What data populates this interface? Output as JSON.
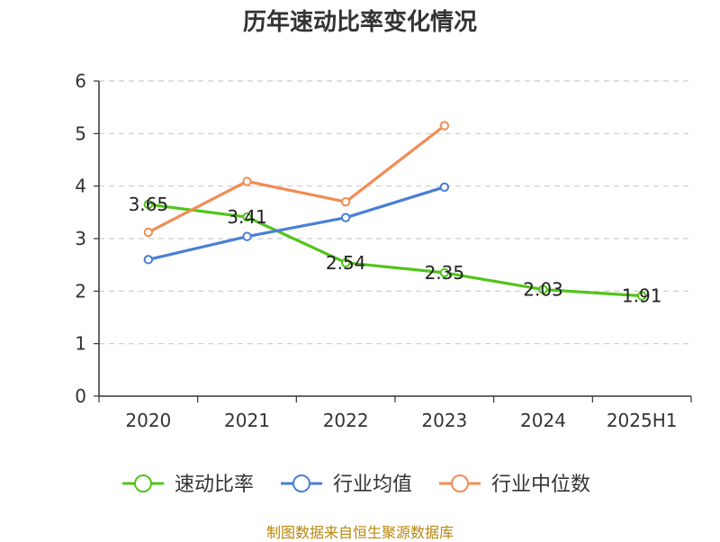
{
  "chart_data": {
    "type": "line",
    "title": "历年速动比率变化情况",
    "categories": [
      "2020",
      "2021",
      "2022",
      "2023",
      "2024",
      "2025H1"
    ],
    "ylim": [
      0,
      6
    ],
    "yticks": [
      0,
      1,
      2,
      3,
      4,
      5,
      6
    ],
    "grid": true,
    "legend_position": "bottom",
    "series": [
      {
        "name": "速动比率",
        "color": "#52c41a",
        "values": [
          3.65,
          3.41,
          2.54,
          2.35,
          2.03,
          1.91
        ],
        "labels": [
          "3.65",
          "3.41",
          "2.54",
          "2.35",
          "2.03",
          "1.91"
        ],
        "show_labels": true
      },
      {
        "name": "行业均值",
        "color": "#4a7fd6",
        "values": [
          2.6,
          3.04,
          3.4,
          3.98,
          null,
          null
        ],
        "show_labels": false
      },
      {
        "name": "行业中位数",
        "color": "#f28c55",
        "values": [
          3.12,
          4.09,
          3.7,
          5.15,
          null,
          null
        ],
        "show_labels": false
      }
    ]
  },
  "source": "制图数据来自恒生聚源数据库"
}
